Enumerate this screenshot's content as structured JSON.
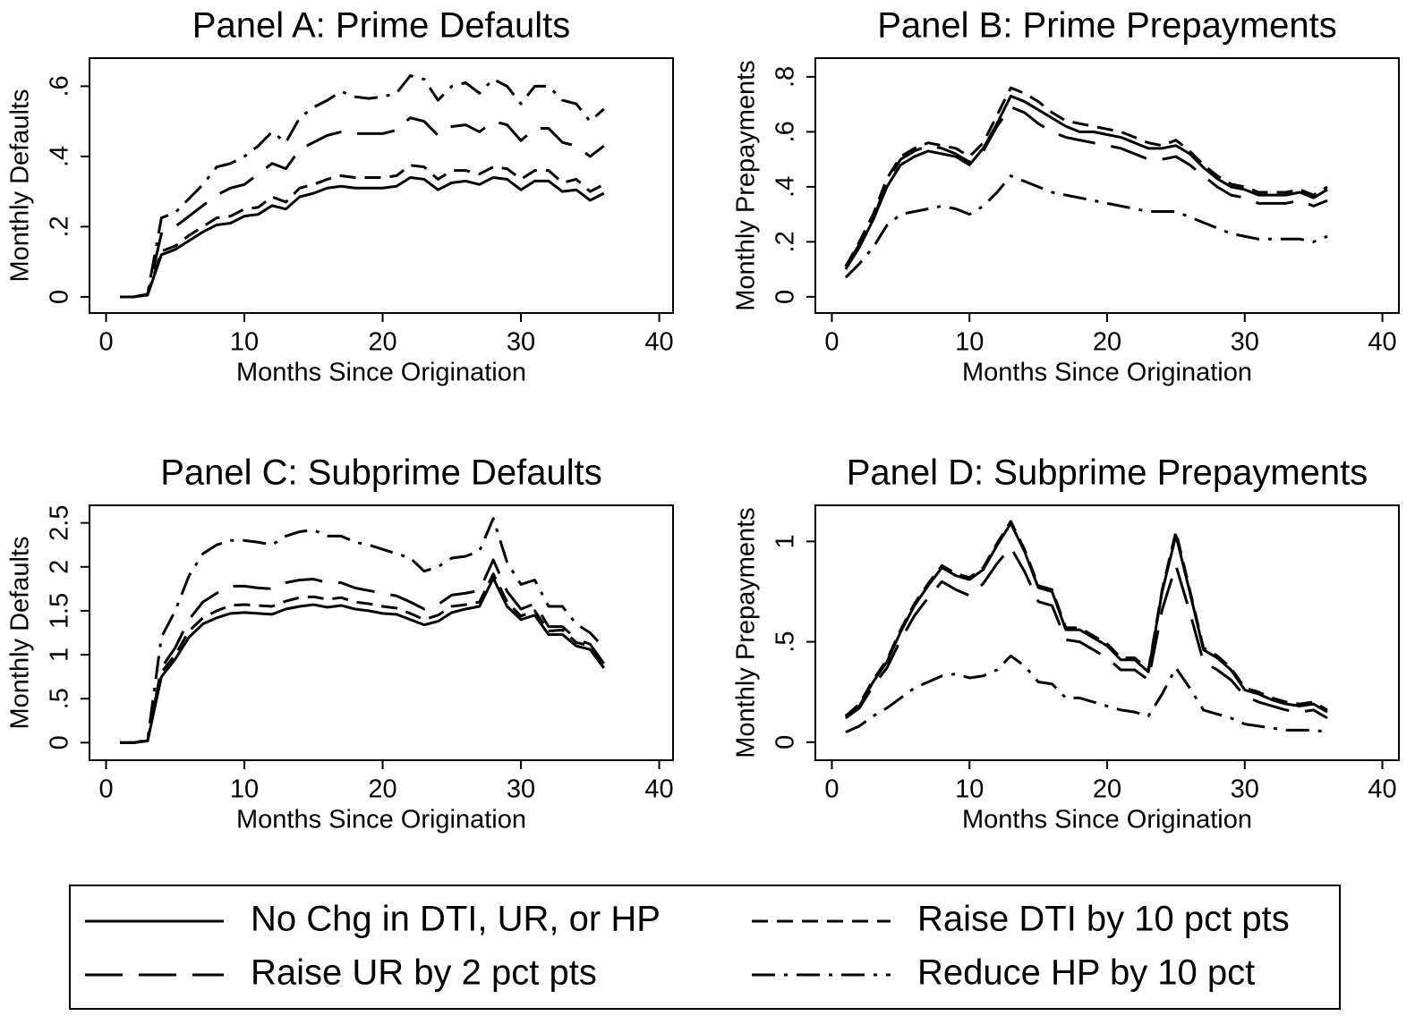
{
  "chart_data": [
    {
      "type": "line",
      "title": "Panel A: Prime Defaults",
      "x_label": "Months Since Origination",
      "y_label": "Monthly Defaults",
      "xlim": [
        -1.2,
        41
      ],
      "ylim": [
        -0.046,
        0.68
      ],
      "xticks": [
        0,
        10,
        20,
        30,
        40
      ],
      "yticks": [
        0,
        {
          "value": 0.2,
          "label": ".2"
        },
        {
          "value": 0.4,
          "label": ".4"
        },
        {
          "value": 0.6,
          "label": ".6"
        }
      ],
      "x": [
        1,
        2,
        3,
        4,
        5,
        6,
        7,
        8,
        9,
        10,
        11,
        12,
        13,
        14,
        15,
        16,
        17,
        18,
        19,
        20,
        21,
        22,
        23,
        24,
        25,
        26,
        27,
        28,
        29,
        30,
        31,
        32,
        33,
        34,
        35,
        36
      ],
      "series": [
        {
          "color": "#000000",
          "values": [
            0,
            0,
            0.005,
            0.12,
            0.135,
            0.16,
            0.185,
            0.205,
            0.21,
            0.23,
            0.235,
            0.26,
            0.25,
            0.285,
            0.295,
            0.31,
            0.315,
            0.31,
            0.31,
            0.31,
            0.315,
            0.34,
            0.335,
            0.305,
            0.325,
            0.33,
            0.32,
            0.34,
            0.335,
            0.305,
            0.33,
            0.33,
            0.3,
            0.305,
            0.275,
            0.295
          ]
        },
        {
          "color": "#000000",
          "values": [
            0,
            0,
            0.006,
            0.13,
            0.145,
            0.175,
            0.2,
            0.225,
            0.23,
            0.25,
            0.255,
            0.285,
            0.27,
            0.31,
            0.32,
            0.335,
            0.345,
            0.34,
            0.34,
            0.34,
            0.345,
            0.375,
            0.37,
            0.335,
            0.36,
            0.36,
            0.35,
            0.37,
            0.365,
            0.335,
            0.36,
            0.36,
            0.325,
            0.335,
            0.3,
            0.32
          ]
        },
        {
          "color": "#000000",
          "values": [
            0,
            0,
            0.008,
            0.18,
            0.2,
            0.23,
            0.26,
            0.29,
            0.31,
            0.32,
            0.35,
            0.38,
            0.365,
            0.42,
            0.44,
            0.46,
            0.47,
            0.465,
            0.465,
            0.465,
            0.475,
            0.51,
            0.5,
            0.46,
            0.485,
            0.49,
            0.47,
            0.5,
            0.49,
            0.445,
            0.48,
            0.48,
            0.44,
            0.43,
            0.4,
            0.43
          ]
        },
        {
          "color": "#000000",
          "values": [
            0,
            0,
            0.008,
            0.225,
            0.24,
            0.28,
            0.32,
            0.37,
            0.38,
            0.4,
            0.43,
            0.47,
            0.44,
            0.51,
            0.54,
            0.56,
            0.585,
            0.57,
            0.565,
            0.57,
            0.58,
            0.63,
            0.62,
            0.56,
            0.6,
            0.61,
            0.58,
            0.62,
            0.6,
            0.55,
            0.6,
            0.6,
            0.56,
            0.55,
            0.5,
            0.535
          ]
        }
      ]
    },
    {
      "type": "line",
      "title": "Panel B: Prime Prepayments",
      "x_label": "Months Since Origination",
      "y_label": "Monthly Prepayments",
      "xlim": [
        -1.2,
        41.2
      ],
      "ylim": [
        -0.059,
        0.868
      ],
      "xticks": [
        0,
        10,
        20,
        30,
        40
      ],
      "yticks": [
        0,
        {
          "value": 0.2,
          "label": ".2"
        },
        {
          "value": 0.4,
          "label": ".4"
        },
        {
          "value": 0.6,
          "label": ".6"
        },
        {
          "value": 0.8,
          "label": ".8"
        }
      ],
      "x": [
        1,
        2,
        3,
        4,
        5,
        6,
        7,
        8,
        9,
        10,
        11,
        12,
        13,
        14,
        15,
        16,
        17,
        18,
        19,
        20,
        21,
        22,
        23,
        24,
        25,
        26,
        27,
        28,
        29,
        30,
        31,
        32,
        33,
        34,
        35,
        36
      ],
      "series": [
        {
          "color": "#000000",
          "values": [
            0.1,
            0.18,
            0.28,
            0.4,
            0.48,
            0.51,
            0.53,
            0.52,
            0.51,
            0.48,
            0.54,
            0.63,
            0.73,
            0.71,
            0.68,
            0.65,
            0.62,
            0.6,
            0.6,
            0.59,
            0.58,
            0.56,
            0.54,
            0.54,
            0.55,
            0.52,
            0.47,
            0.43,
            0.4,
            0.39,
            0.37,
            0.37,
            0.37,
            0.38,
            0.36,
            0.39
          ]
        },
        {
          "color": "#000000",
          "values": [
            0.11,
            0.2,
            0.3,
            0.43,
            0.51,
            0.54,
            0.56,
            0.55,
            0.54,
            0.51,
            0.56,
            0.66,
            0.76,
            0.74,
            0.71,
            0.67,
            0.64,
            0.63,
            0.62,
            0.61,
            0.6,
            0.58,
            0.56,
            0.55,
            0.57,
            0.53,
            0.48,
            0.44,
            0.41,
            0.4,
            0.38,
            0.38,
            0.38,
            0.39,
            0.37,
            0.4
          ]
        },
        {
          "color": "#000000",
          "values": [
            0.11,
            0.19,
            0.28,
            0.42,
            0.5,
            0.53,
            0.55,
            0.54,
            0.52,
            0.49,
            0.53,
            0.62,
            0.69,
            0.67,
            0.63,
            0.6,
            0.58,
            0.57,
            0.56,
            0.55,
            0.54,
            0.52,
            0.5,
            0.5,
            0.51,
            0.48,
            0.44,
            0.4,
            0.37,
            0.36,
            0.34,
            0.34,
            0.34,
            0.35,
            0.33,
            0.35
          ]
        },
        {
          "color": "#000000",
          "values": [
            0.07,
            0.12,
            0.18,
            0.26,
            0.3,
            0.31,
            0.32,
            0.33,
            0.32,
            0.3,
            0.33,
            0.38,
            0.44,
            0.42,
            0.4,
            0.38,
            0.37,
            0.36,
            0.35,
            0.34,
            0.33,
            0.32,
            0.31,
            0.31,
            0.31,
            0.29,
            0.27,
            0.25,
            0.23,
            0.22,
            0.21,
            0.21,
            0.21,
            0.21,
            0.2,
            0.22
          ]
        }
      ]
    },
    {
      "type": "line",
      "title": "Panel C: Subprime Defaults",
      "x_label": "Months Since Origination",
      "y_label": "Monthly Defaults",
      "xlim": [
        -1.2,
        41
      ],
      "ylim": [
        -0.2,
        2.7
      ],
      "xticks": [
        0,
        10,
        20,
        30,
        40
      ],
      "yticks": [
        0,
        {
          "value": 0.5,
          "label": ".5"
        },
        1,
        1.5,
        2,
        2.5
      ],
      "x": [
        1,
        2,
        3,
        4,
        5,
        6,
        7,
        8,
        9,
        10,
        11,
        12,
        13,
        14,
        15,
        16,
        17,
        18,
        19,
        20,
        21,
        22,
        23,
        24,
        25,
        26,
        27,
        28,
        29,
        30,
        31,
        32,
        33,
        34,
        35,
        36
      ],
      "series": [
        {
          "color": "#000000",
          "values": [
            0,
            0,
            0.02,
            0.75,
            0.95,
            1.2,
            1.35,
            1.42,
            1.47,
            1.48,
            1.47,
            1.46,
            1.52,
            1.55,
            1.57,
            1.54,
            1.56,
            1.52,
            1.5,
            1.47,
            1.46,
            1.4,
            1.34,
            1.38,
            1.48,
            1.52,
            1.55,
            1.87,
            1.55,
            1.4,
            1.45,
            1.23,
            1.23,
            1.1,
            1.06,
            0.85
          ]
        },
        {
          "color": "#000000",
          "values": [
            0,
            0,
            0.02,
            0.8,
            1.0,
            1.27,
            1.42,
            1.5,
            1.56,
            1.57,
            1.56,
            1.55,
            1.61,
            1.65,
            1.66,
            1.63,
            1.65,
            1.6,
            1.58,
            1.55,
            1.53,
            1.47,
            1.4,
            1.45,
            1.55,
            1.57,
            1.6,
            1.92,
            1.6,
            1.44,
            1.5,
            1.27,
            1.28,
            1.14,
            1.1,
            0.88
          ]
        },
        {
          "color": "#000000",
          "values": [
            0,
            0,
            0.02,
            0.85,
            1.08,
            1.4,
            1.6,
            1.7,
            1.78,
            1.78,
            1.76,
            1.75,
            1.82,
            1.85,
            1.86,
            1.82,
            1.82,
            1.76,
            1.73,
            1.7,
            1.67,
            1.6,
            1.52,
            1.57,
            1.68,
            1.7,
            1.73,
            2.08,
            1.72,
            1.52,
            1.58,
            1.32,
            1.32,
            1.18,
            1.12,
            0.9
          ]
        },
        {
          "color": "#000000",
          "values": [
            0,
            0,
            0.03,
            1.2,
            1.5,
            1.9,
            2.15,
            2.25,
            2.3,
            2.3,
            2.28,
            2.25,
            2.35,
            2.4,
            2.42,
            2.35,
            2.35,
            2.28,
            2.25,
            2.2,
            2.15,
            2.1,
            1.95,
            2.0,
            2.1,
            2.12,
            2.18,
            2.55,
            2.05,
            1.8,
            1.85,
            1.55,
            1.55,
            1.35,
            1.25,
            1.08
          ]
        }
      ]
    },
    {
      "type": "line",
      "title": "Panel D: Subprime Prepayments",
      "x_label": "Months Since Origination",
      "y_label": "Monthly Prepayments",
      "xlim": [
        -1.2,
        41.2
      ],
      "ylim": [
        -0.09,
        1.18
      ],
      "xticks": [
        0,
        10,
        20,
        30,
        40
      ],
      "yticks": [
        0,
        {
          "value": 0.5,
          "label": ".5"
        },
        1
      ],
      "x": [
        1,
        2,
        3,
        4,
        5,
        6,
        7,
        8,
        9,
        10,
        11,
        12,
        13,
        14,
        15,
        16,
        17,
        18,
        19,
        20,
        21,
        22,
        23,
        24,
        25,
        26,
        27,
        28,
        29,
        30,
        31,
        32,
        33,
        34,
        35,
        36
      ],
      "series": [
        {
          "color": "#000000",
          "values": [
            0.13,
            0.18,
            0.3,
            0.4,
            0.55,
            0.68,
            0.78,
            0.87,
            0.83,
            0.81,
            0.86,
            0.98,
            1.09,
            0.95,
            0.77,
            0.75,
            0.56,
            0.56,
            0.52,
            0.48,
            0.41,
            0.41,
            0.35,
            0.75,
            1.03,
            0.75,
            0.46,
            0.42,
            0.36,
            0.26,
            0.24,
            0.21,
            0.19,
            0.18,
            0.19,
            0.15
          ]
        },
        {
          "color": "#000000",
          "values": [
            0.13,
            0.19,
            0.31,
            0.41,
            0.56,
            0.69,
            0.79,
            0.88,
            0.84,
            0.82,
            0.87,
            0.99,
            1.1,
            0.96,
            0.78,
            0.76,
            0.57,
            0.57,
            0.53,
            0.49,
            0.42,
            0.42,
            0.36,
            0.76,
            1.05,
            0.76,
            0.47,
            0.43,
            0.37,
            0.27,
            0.25,
            0.22,
            0.2,
            0.19,
            0.2,
            0.16
          ]
        },
        {
          "color": "#000000",
          "values": [
            0.12,
            0.17,
            0.28,
            0.37,
            0.51,
            0.63,
            0.72,
            0.8,
            0.76,
            0.73,
            0.79,
            0.89,
            0.97,
            0.85,
            0.7,
            0.68,
            0.51,
            0.5,
            0.46,
            0.42,
            0.36,
            0.36,
            0.31,
            0.66,
            0.88,
            0.65,
            0.4,
            0.36,
            0.31,
            0.23,
            0.2,
            0.18,
            0.16,
            0.15,
            0.16,
            0.12
          ]
        },
        {
          "color": "#000000",
          "values": [
            0.05,
            0.08,
            0.13,
            0.17,
            0.22,
            0.27,
            0.3,
            0.33,
            0.34,
            0.32,
            0.33,
            0.36,
            0.43,
            0.38,
            0.3,
            0.29,
            0.22,
            0.22,
            0.2,
            0.18,
            0.16,
            0.15,
            0.13,
            0.24,
            0.37,
            0.27,
            0.16,
            0.14,
            0.12,
            0.09,
            0.08,
            0.07,
            0.06,
            0.06,
            0.06,
            0.05
          ]
        }
      ]
    }
  ],
  "legend": {
    "position": "bottom",
    "entries": [
      {
        "name": "No Chg in DTI, UR, or HP",
        "dash": "solid"
      },
      {
        "name": "Raise DTI by 10 pct pts",
        "dash": "dash"
      },
      {
        "name": "Raise UR by 2 pct pts",
        "dash": "longdash"
      },
      {
        "name": "Reduce HP by 10 pct",
        "dash": "dashdot"
      }
    ]
  }
}
